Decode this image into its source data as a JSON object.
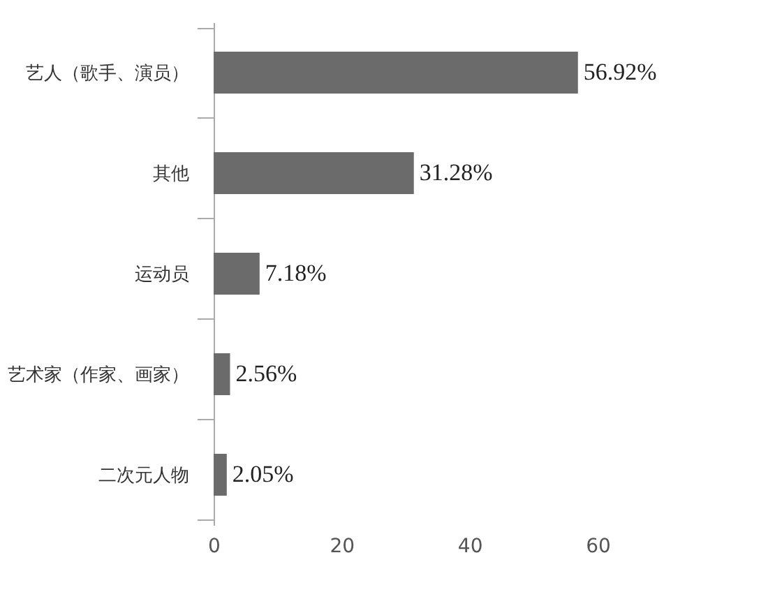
{
  "chart_data": {
    "type": "bar",
    "orientation": "horizontal",
    "categories": [
      "艺人（歌手、演员）",
      "其他",
      "运动员",
      "艺术家（作家、画家）",
      "二次元人物"
    ],
    "values": [
      56.92,
      31.28,
      7.18,
      2.56,
      2.05
    ],
    "value_labels": [
      "56.92%",
      "31.28%",
      "7.18%",
      "2.56%",
      "2.05%"
    ],
    "color": "#6b6b6b",
    "xlim": [
      0,
      60
    ],
    "xticks": [
      0,
      20,
      40,
      60
    ],
    "grid": false
  }
}
